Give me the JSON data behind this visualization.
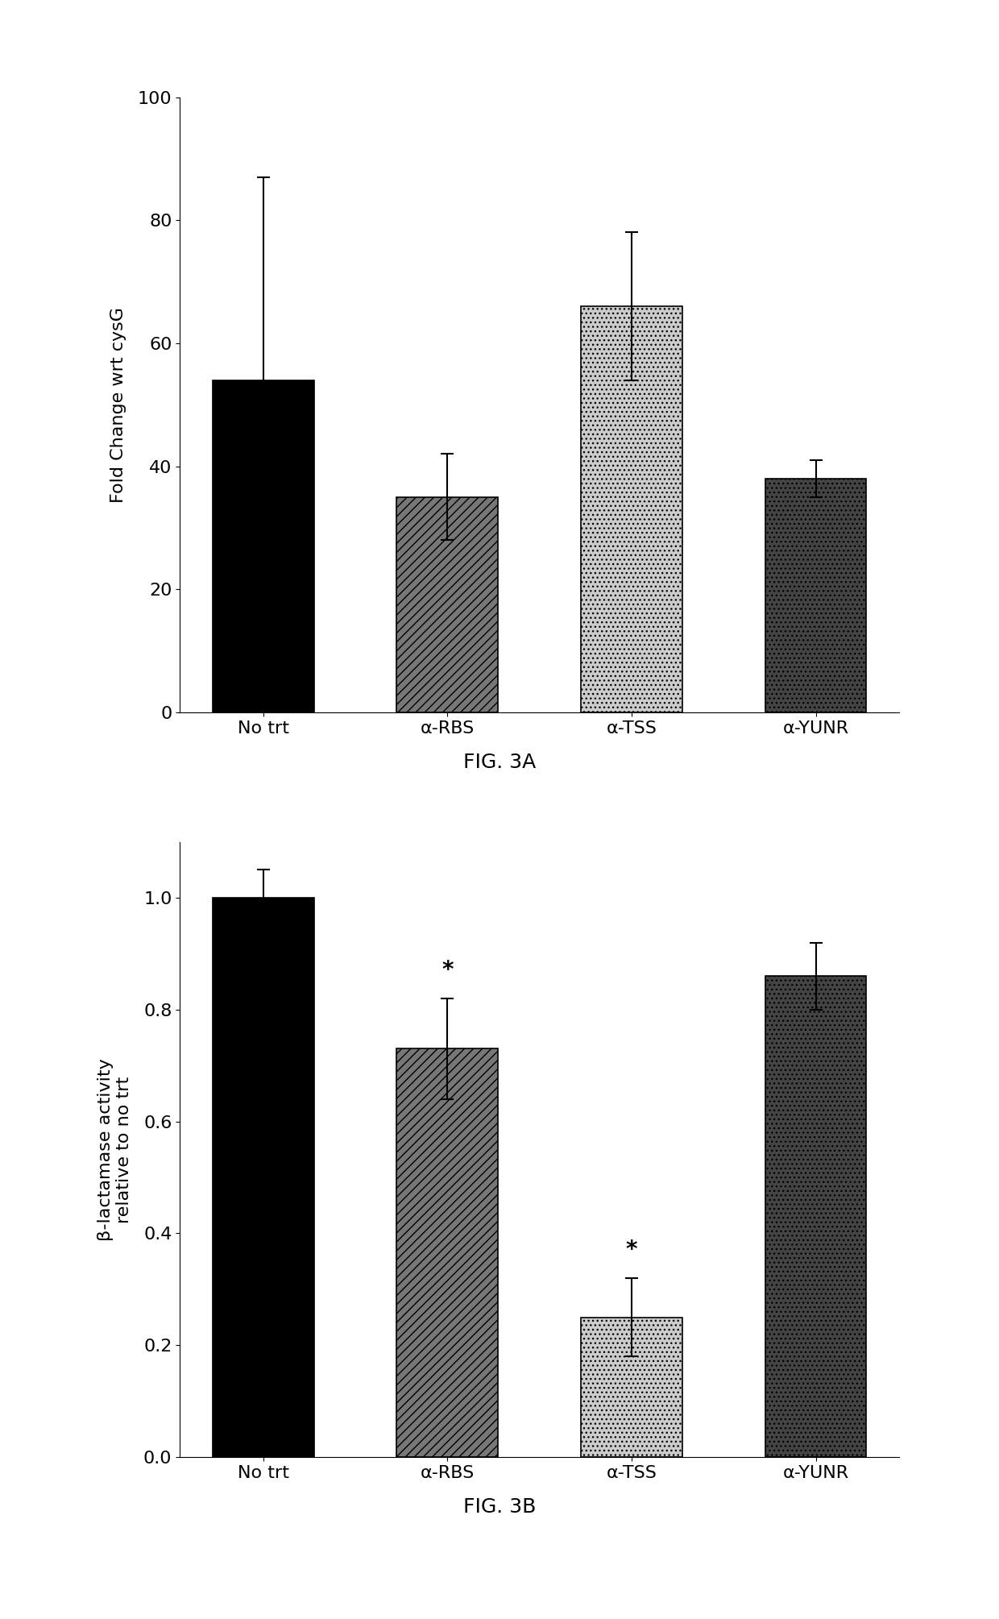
{
  "fig3a": {
    "categories": [
      "No trt",
      "α-RBS",
      "α-TSS",
      "α-YUNR"
    ],
    "values": [
      54,
      35,
      66,
      38
    ],
    "errors": [
      33,
      7,
      12,
      3
    ],
    "ylabel": "Fold Change wrt cysG",
    "ylim": [
      0,
      100
    ],
    "yticks": [
      0,
      20,
      40,
      60,
      80,
      100
    ],
    "caption": "FIG. 3A",
    "bar_colors": [
      "#000000",
      "#777777",
      "#cccccc",
      "#444444"
    ],
    "bar_hatches": [
      null,
      "///",
      "...",
      "..."
    ]
  },
  "fig3b": {
    "categories": [
      "No trt",
      "α-RBS",
      "α-TSS",
      "α-YUNR"
    ],
    "values": [
      1.0,
      0.73,
      0.25,
      0.86
    ],
    "errors": [
      0.05,
      0.09,
      0.07,
      0.06
    ],
    "ylabel": "β-lactamase activity\nrelative to no trt",
    "ylim": [
      0,
      1.1
    ],
    "yticks": [
      0.0,
      0.2,
      0.4,
      0.6,
      0.8,
      1.0
    ],
    "caption": "FIG. 3B",
    "bar_colors": [
      "#000000",
      "#777777",
      "#cccccc",
      "#444444"
    ],
    "bar_hatches": [
      null,
      "///",
      "...",
      "..."
    ],
    "sig_markers": [
      false,
      true,
      true,
      false
    ]
  },
  "bg_color": "#ffffff",
  "font_size": 16,
  "caption_font_size": 18
}
